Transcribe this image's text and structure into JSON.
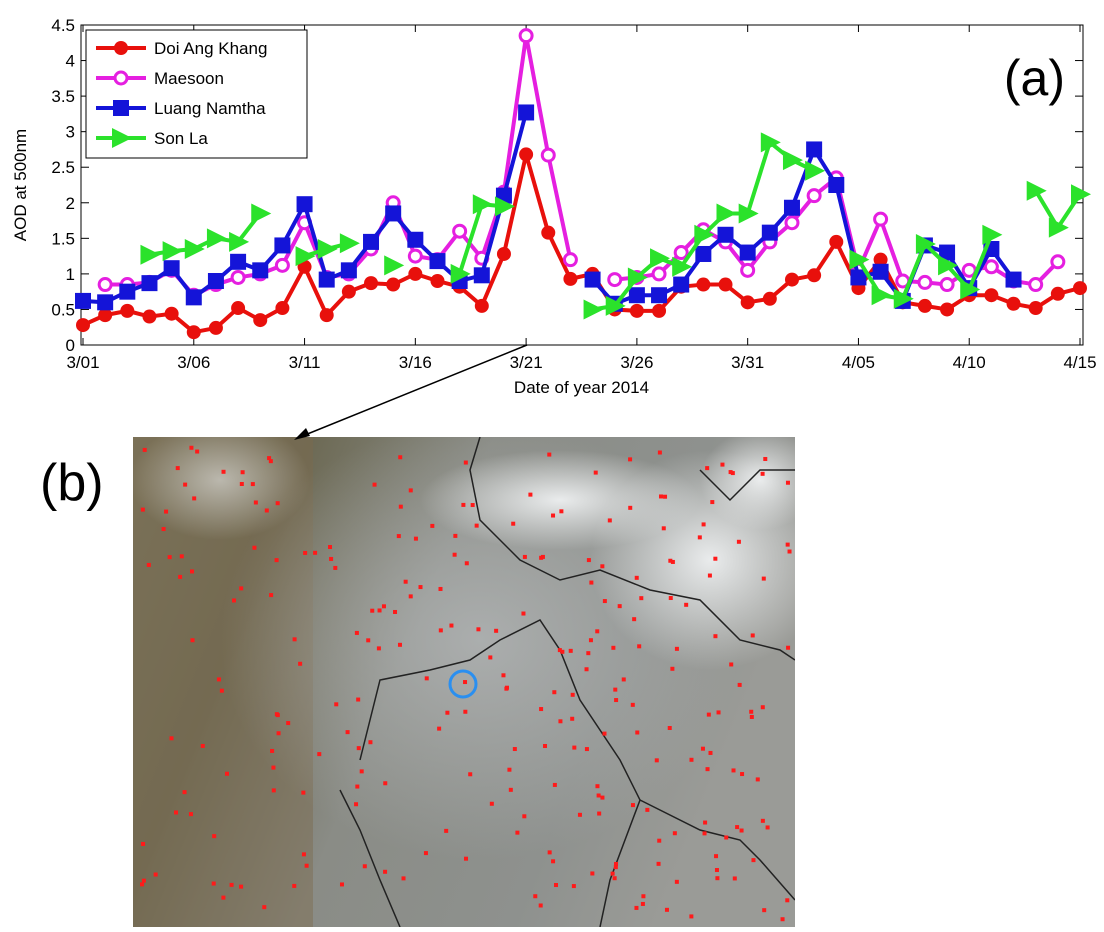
{
  "chart_data": {
    "type": "line",
    "xlabel": "Date of year 2014",
    "ylabel": "AOD at 500nm",
    "annotations": [
      "(a)",
      "(b)"
    ],
    "legend": "upper left",
    "grid": false,
    "x": [
      0,
      1,
      2,
      3,
      4,
      5,
      6,
      7,
      8,
      9,
      10,
      11,
      12,
      13,
      14,
      15,
      16,
      17,
      18,
      19,
      20,
      21,
      22,
      23,
      24,
      25,
      26,
      27,
      28,
      29,
      30,
      31,
      32,
      33,
      34,
      35,
      36,
      37,
      38,
      39,
      40,
      41,
      42,
      43,
      44,
      45
    ],
    "xlim": [
      0,
      45
    ],
    "xticks": [
      {
        "value": 0,
        "label": "3/01"
      },
      {
        "value": 5,
        "label": "3/06"
      },
      {
        "value": 10,
        "label": "3/11"
      },
      {
        "value": 15,
        "label": "3/16"
      },
      {
        "value": 20,
        "label": "3/21"
      },
      {
        "value": 25,
        "label": "3/26"
      },
      {
        "value": 30,
        "label": "3/31"
      },
      {
        "value": 35,
        "label": "4/05"
      },
      {
        "value": 40,
        "label": "4/10"
      },
      {
        "value": 45,
        "label": "4/15"
      }
    ],
    "ylim": [
      0,
      4.5
    ],
    "yticks": [
      0,
      0.5,
      1,
      1.5,
      2,
      2.5,
      3,
      3.5,
      4,
      4.5
    ],
    "series": [
      {
        "name": "Doi Ang Khang",
        "color": "#e8100c",
        "marker": "circle",
        "values": [
          0.28,
          0.42,
          0.48,
          0.4,
          0.44,
          0.18,
          0.24,
          0.52,
          0.35,
          0.52,
          1.1,
          0.42,
          0.75,
          0.87,
          0.85,
          1.0,
          0.9,
          0.82,
          0.55,
          1.28,
          2.68,
          1.58,
          0.93,
          1.0,
          0.5,
          0.48,
          0.48,
          0.82,
          0.85,
          0.85,
          0.6,
          0.65,
          0.92,
          0.98,
          1.45,
          0.8,
          1.2,
          0.6,
          0.55,
          0.5,
          0.7,
          0.7,
          0.58,
          0.52,
          0.72,
          0.8
        ]
      },
      {
        "name": "Maesoon",
        "color": "#e51fe0",
        "marker": "open-circle",
        "values": [
          null,
          0.85,
          0.85,
          0.88,
          1.05,
          0.7,
          0.85,
          0.95,
          1.0,
          1.12,
          1.72,
          0.95,
          1.0,
          1.35,
          2.0,
          1.25,
          1.2,
          1.6,
          1.22,
          2.15,
          4.35,
          2.67,
          1.2,
          null,
          0.92,
          0.95,
          1.0,
          1.3,
          1.62,
          1.45,
          1.05,
          1.45,
          1.72,
          2.1,
          2.35,
          1.05,
          1.77,
          0.9,
          0.88,
          0.85,
          1.05,
          1.1,
          0.9,
          0.85,
          1.17,
          null
        ]
      },
      {
        "name": "Luang Namtha",
        "color": "#1414d8",
        "marker": "square",
        "values": [
          0.62,
          0.6,
          0.75,
          0.87,
          1.08,
          0.67,
          0.9,
          1.17,
          1.05,
          1.4,
          1.98,
          0.92,
          1.05,
          1.45,
          1.85,
          1.48,
          1.18,
          0.9,
          0.98,
          2.1,
          3.27,
          null,
          null,
          0.92,
          0.58,
          0.7,
          0.7,
          0.85,
          1.28,
          1.55,
          1.3,
          1.58,
          1.93,
          2.75,
          2.25,
          0.95,
          1.03,
          0.62,
          1.4,
          1.3,
          0.8,
          1.35,
          0.92,
          null,
          null,
          null
        ]
      },
      {
        "name": "Son La",
        "color": "#2be22b",
        "marker": "triangle-right",
        "values": [
          null,
          null,
          null,
          1.27,
          1.32,
          1.35,
          1.5,
          1.45,
          1.85,
          null,
          1.25,
          1.35,
          1.43,
          null,
          1.12,
          null,
          null,
          1.0,
          1.98,
          1.95,
          null,
          null,
          null,
          0.5,
          0.55,
          0.95,
          1.22,
          1.1,
          1.55,
          1.85,
          1.85,
          2.85,
          2.6,
          2.45,
          null,
          1.2,
          0.7,
          0.65,
          1.42,
          1.12,
          0.78,
          1.55,
          null,
          2.17,
          1.65,
          2.12
        ]
      }
    ]
  }
}
